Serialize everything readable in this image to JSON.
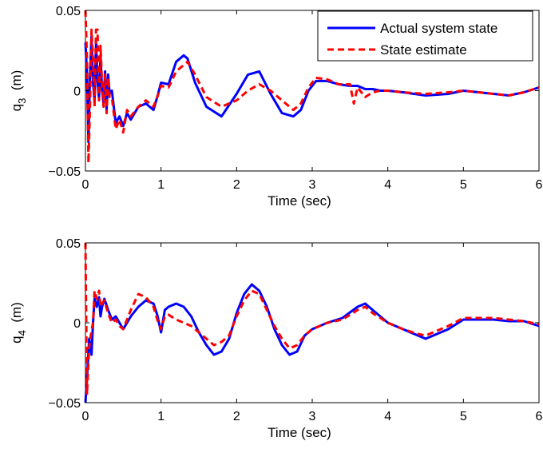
{
  "chart_data": [
    {
      "type": "line",
      "xlabel": "Time (sec)",
      "ylabel_main": "q",
      "ylabel_sub": "3",
      "ylabel_unit": "(m)",
      "xlim": [
        0,
        6
      ],
      "ylim": [
        -0.05,
        0.05
      ],
      "xticks": [
        0,
        1,
        2,
        3,
        4,
        5,
        6
      ],
      "xtick_labels": [
        "0",
        "1",
        "2",
        "3",
        "4",
        "5",
        "6"
      ],
      "yticks": [
        -0.05,
        0,
        0.05
      ],
      "ytick_labels": [
        "−0.05",
        "0",
        "0.05"
      ],
      "grid": false,
      "legend_position": "top-right",
      "series": [
        {
          "name": "Actual system state",
          "color": "#0000ff",
          "style": "solid",
          "x": [
            0,
            0.02,
            0.04,
            0.06,
            0.08,
            0.1,
            0.12,
            0.14,
            0.16,
            0.18,
            0.2,
            0.22,
            0.24,
            0.26,
            0.28,
            0.3,
            0.32,
            0.35,
            0.4,
            0.45,
            0.5,
            0.55,
            0.6,
            0.7,
            0.8,
            0.9,
            0.95,
            1.0,
            1.1,
            1.2,
            1.3,
            1.35,
            1.45,
            1.6,
            1.8,
            2.0,
            2.15,
            2.3,
            2.45,
            2.6,
            2.75,
            2.85,
            2.95,
            3.05,
            3.2,
            3.35,
            3.5,
            3.6,
            3.7,
            3.8,
            3.9,
            4.0,
            4.2,
            4.5,
            4.8,
            5.0,
            5.2,
            5.4,
            5.6,
            5.8,
            6.0
          ],
          "y": [
            0.03,
            0.01,
            -0.032,
            0.01,
            0.034,
            0.005,
            -0.006,
            0.03,
            0.006,
            -0.005,
            0.022,
            0.0,
            -0.008,
            0.012,
            -0.012,
            0.01,
            -0.002,
            0.0,
            -0.02,
            -0.016,
            -0.022,
            -0.014,
            -0.018,
            -0.01,
            -0.008,
            -0.012,
            -0.004,
            0.005,
            0.004,
            0.018,
            0.022,
            0.02,
            0.005,
            -0.01,
            -0.016,
            -0.002,
            0.01,
            0.012,
            -0.002,
            -0.014,
            -0.016,
            -0.012,
            0.0,
            0.006,
            0.006,
            0.004,
            0.003,
            0.003,
            0.001,
            0.001,
            0.0,
            0.0,
            -0.001,
            -0.003,
            -0.002,
            0.0,
            -0.001,
            -0.002,
            -0.003,
            -0.001,
            0.002
          ]
        },
        {
          "name": "State estimate",
          "color": "#ff0000",
          "style": "dashed",
          "x": [
            0,
            0.02,
            0.04,
            0.06,
            0.08,
            0.1,
            0.12,
            0.14,
            0.16,
            0.18,
            0.2,
            0.22,
            0.24,
            0.26,
            0.28,
            0.3,
            0.32,
            0.35,
            0.4,
            0.45,
            0.5,
            0.55,
            0.6,
            0.7,
            0.8,
            0.9,
            0.95,
            1.0,
            1.1,
            1.2,
            1.3,
            1.35,
            1.45,
            1.6,
            1.8,
            2.0,
            2.15,
            2.3,
            2.45,
            2.6,
            2.75,
            2.85,
            2.95,
            3.05,
            3.2,
            3.35,
            3.5,
            3.55,
            3.6,
            3.7,
            3.8,
            3.9,
            4.0,
            4.2,
            4.5,
            4.8,
            5.0,
            5.2,
            5.4,
            5.6,
            5.8,
            6.0
          ],
          "y": [
            0.05,
            0.02,
            -0.045,
            -0.01,
            0.038,
            0.02,
            -0.01,
            0.038,
            0.038,
            -0.006,
            0.028,
            0.004,
            -0.01,
            0.01,
            -0.014,
            0.008,
            -0.004,
            -0.004,
            -0.024,
            -0.018,
            -0.026,
            -0.012,
            -0.016,
            -0.01,
            -0.006,
            -0.01,
            -0.004,
            0.003,
            0.002,
            0.012,
            0.016,
            0.018,
            0.01,
            -0.004,
            -0.01,
            -0.006,
            0.0,
            0.004,
            0.0,
            -0.006,
            -0.012,
            -0.008,
            0.002,
            0.008,
            0.007,
            0.004,
            0.004,
            -0.008,
            0.002,
            -0.004,
            -0.001,
            0.0,
            0.0,
            -0.001,
            -0.002,
            -0.001,
            0.0,
            -0.001,
            -0.002,
            -0.003,
            -0.001,
            0.002
          ]
        }
      ]
    },
    {
      "type": "line",
      "xlabel": "Time (sec)",
      "ylabel_main": "q",
      "ylabel_sub": "4",
      "ylabel_unit": "(m)",
      "xlim": [
        0,
        6
      ],
      "ylim": [
        -0.05,
        0.05
      ],
      "xticks": [
        0,
        1,
        2,
        3,
        4,
        5,
        6
      ],
      "xtick_labels": [
        "0",
        "1",
        "2",
        "3",
        "4",
        "5",
        "6"
      ],
      "yticks": [
        -0.05,
        0,
        0.05
      ],
      "ytick_labels": [
        "−0.05",
        "0",
        "0.05"
      ],
      "grid": false,
      "series": [
        {
          "color": "#0000ff",
          "style": "solid",
          "x": [
            0,
            0.02,
            0.05,
            0.08,
            0.1,
            0.12,
            0.15,
            0.18,
            0.2,
            0.22,
            0.25,
            0.3,
            0.35,
            0.4,
            0.45,
            0.5,
            0.6,
            0.7,
            0.8,
            0.9,
            0.95,
            1.0,
            1.05,
            1.1,
            1.2,
            1.3,
            1.4,
            1.5,
            1.6,
            1.7,
            1.8,
            1.9,
            2.0,
            2.1,
            2.2,
            2.3,
            2.4,
            2.5,
            2.6,
            2.7,
            2.8,
            2.9,
            3.0,
            3.2,
            3.4,
            3.6,
            3.7,
            3.8,
            3.9,
            4.0,
            4.2,
            4.4,
            4.5,
            4.6,
            4.8,
            5.0,
            5.2,
            5.4,
            5.6,
            5.8,
            6.0
          ],
          "y": [
            -0.05,
            -0.035,
            -0.01,
            -0.02,
            0.0,
            0.015,
            0.01,
            0.016,
            0.004,
            0.01,
            0.015,
            0.008,
            0.002,
            0.004,
            0.0,
            -0.004,
            0.004,
            0.01,
            0.014,
            0.012,
            0.005,
            -0.006,
            0.008,
            0.01,
            0.012,
            0.01,
            0.004,
            -0.006,
            -0.014,
            -0.02,
            -0.018,
            -0.01,
            0.006,
            0.018,
            0.024,
            0.02,
            0.01,
            -0.004,
            -0.014,
            -0.02,
            -0.018,
            -0.008,
            -0.004,
            0.0,
            0.003,
            0.01,
            0.012,
            0.008,
            0.004,
            0.0,
            -0.004,
            -0.008,
            -0.01,
            -0.008,
            -0.004,
            0.002,
            0.002,
            0.002,
            0.001,
            0.001,
            -0.002
          ]
        },
        {
          "color": "#ff0000",
          "style": "dashed",
          "x": [
            0,
            0.02,
            0.05,
            0.08,
            0.1,
            0.12,
            0.15,
            0.18,
            0.2,
            0.22,
            0.25,
            0.3,
            0.35,
            0.4,
            0.45,
            0.5,
            0.6,
            0.7,
            0.8,
            0.9,
            0.95,
            1.0,
            1.05,
            1.1,
            1.2,
            1.3,
            1.4,
            1.5,
            1.6,
            1.7,
            1.8,
            1.9,
            2.0,
            2.1,
            2.2,
            2.3,
            2.4,
            2.5,
            2.6,
            2.7,
            2.8,
            2.9,
            3.0,
            3.2,
            3.4,
            3.6,
            3.7,
            3.8,
            3.9,
            4.0,
            4.2,
            4.4,
            4.5,
            4.6,
            4.8,
            5.0,
            5.2,
            5.4,
            5.6,
            5.8,
            6.0
          ],
          "y": [
            0.05,
            -0.045,
            -0.015,
            -0.005,
            0.0,
            0.02,
            0.015,
            0.02,
            0.01,
            0.012,
            0.014,
            0.006,
            0.0,
            0.002,
            -0.002,
            -0.004,
            0.008,
            0.018,
            0.016,
            0.01,
            0.002,
            -0.004,
            0.004,
            0.005,
            0.002,
            0.0,
            -0.002,
            -0.006,
            -0.01,
            -0.014,
            -0.012,
            -0.008,
            0.004,
            0.014,
            0.02,
            0.018,
            0.008,
            -0.002,
            -0.01,
            -0.016,
            -0.014,
            -0.008,
            -0.004,
            0.0,
            0.002,
            0.008,
            0.01,
            0.006,
            0.003,
            0.0,
            -0.004,
            -0.007,
            -0.008,
            -0.006,
            -0.002,
            0.003,
            0.003,
            0.003,
            0.002,
            0.001,
            -0.001
          ]
        }
      ]
    }
  ]
}
